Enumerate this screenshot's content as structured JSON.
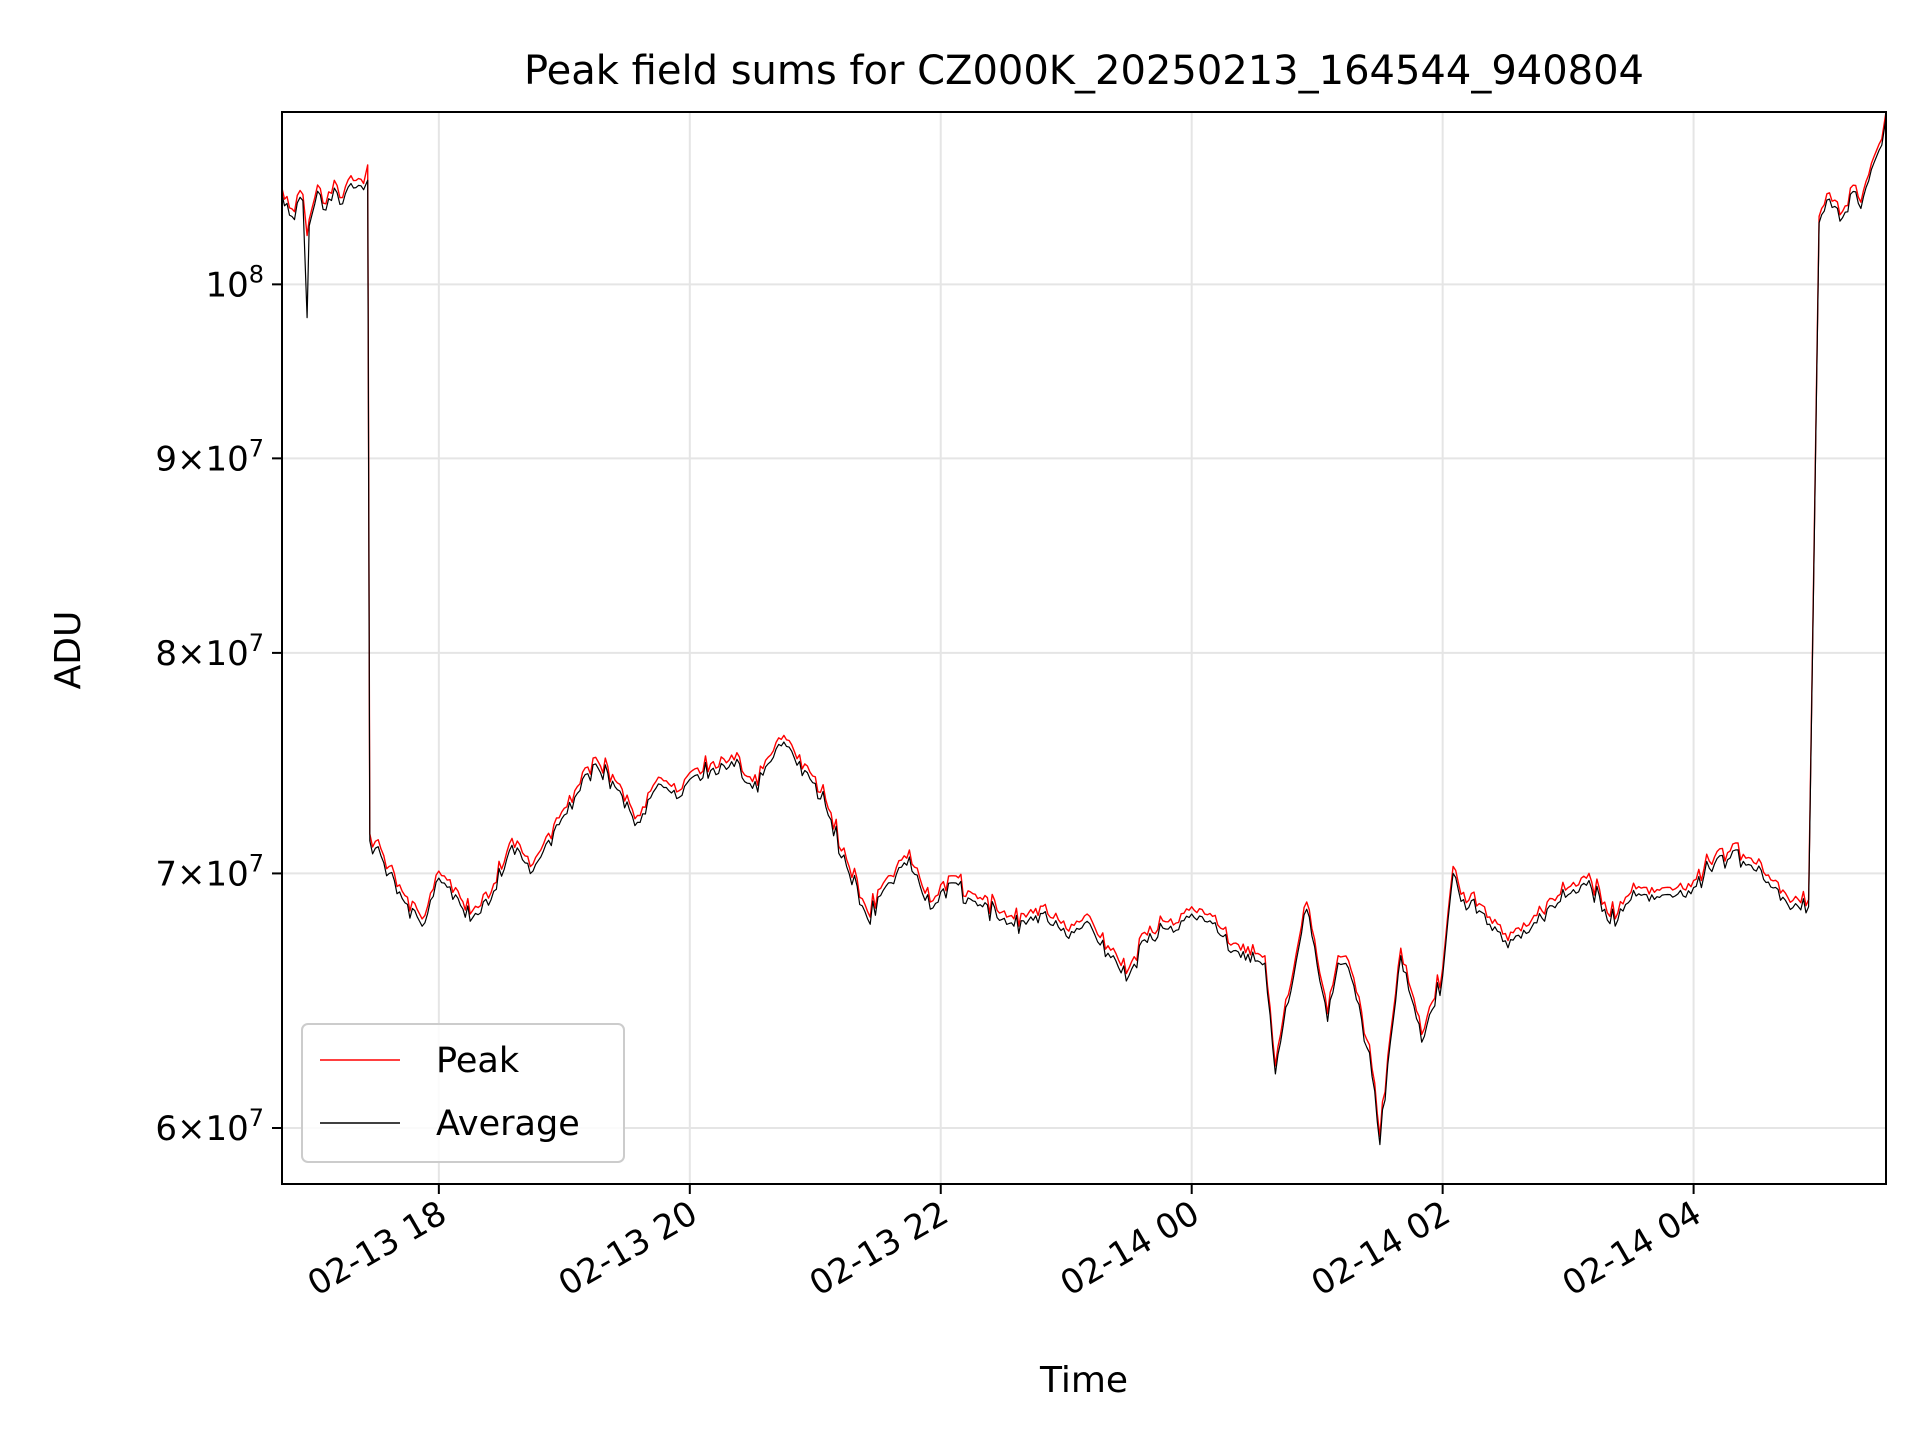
{
  "chart_data": {
    "type": "line",
    "title": "Peak field sums for CZ000K_20250213_164544_940804",
    "xlabel": "Time",
    "ylabel": "ADU",
    "y_scale": "log",
    "grid": true,
    "legend_placement": "lower-left",
    "xlim": [
      "2025-02-13 16:45",
      "2025-02-14 05:32"
    ],
    "ylim": [
      58000000,
      111000000
    ],
    "x_ticks": [
      {
        "value": "2025-02-13 18:00",
        "label": "02-13 18"
      },
      {
        "value": "2025-02-13 20:00",
        "label": "02-13 20"
      },
      {
        "value": "2025-02-13 22:00",
        "label": "02-13 22"
      },
      {
        "value": "2025-02-14 00:00",
        "label": "02-14 00"
      },
      {
        "value": "2025-02-14 02:00",
        "label": "02-14 02"
      },
      {
        "value": "2025-02-14 04:00",
        "label": "02-14 04"
      }
    ],
    "y_ticks": [
      {
        "value": 60000000,
        "mantissa": "6",
        "base": "10",
        "exp": "7"
      },
      {
        "value": 70000000,
        "mantissa": "7",
        "base": "10",
        "exp": "7"
      },
      {
        "value": 80000000,
        "mantissa": "8",
        "base": "10",
        "exp": "7"
      },
      {
        "value": 90000000,
        "mantissa": "9",
        "base": "10",
        "exp": "7"
      },
      {
        "value": 100000000,
        "mantissa": "",
        "base": "10",
        "exp": "8"
      }
    ],
    "series": [
      {
        "name": "Peak",
        "color": "#ff0000",
        "x": [
          "2025-02-13 16:45",
          "2025-02-13 16:51",
          "2025-02-13 16:55",
          "2025-02-13 16:57",
          "2025-02-13 16:58",
          "2025-02-13 17:02",
          "2025-02-13 17:06",
          "2025-02-13 17:10",
          "2025-02-13 17:14",
          "2025-02-13 17:18",
          "2025-02-13 17:24",
          "2025-02-13 17:26",
          "2025-02-13 17:27",
          "2025-02-13 17:35",
          "2025-02-13 17:45",
          "2025-02-13 17:52",
          "2025-02-13 18:00",
          "2025-02-13 18:08",
          "2025-02-13 18:15",
          "2025-02-13 18:25",
          "2025-02-13 18:35",
          "2025-02-13 18:45",
          "2025-02-13 18:55",
          "2025-02-13 19:05",
          "2025-02-13 19:15",
          "2025-02-13 19:30",
          "2025-02-13 19:35",
          "2025-02-13 19:45",
          "2025-02-13 19:55",
          "2025-02-13 20:00",
          "2025-02-13 20:10",
          "2025-02-13 20:20",
          "2025-02-13 20:30",
          "2025-02-13 20:40",
          "2025-02-13 20:45",
          "2025-02-13 20:55",
          "2025-02-13 21:05",
          "2025-02-13 21:15",
          "2025-02-13 21:25",
          "2025-02-13 21:35",
          "2025-02-13 21:45",
          "2025-02-13 21:55",
          "2025-02-13 22:05",
          "2025-02-13 22:20",
          "2025-02-13 22:35",
          "2025-02-13 22:50",
          "2025-02-13 23:00",
          "2025-02-13 23:10",
          "2025-02-13 23:20",
          "2025-02-13 23:30",
          "2025-02-13 23:40",
          "2025-02-13 23:50",
          "2025-02-14 00:00",
          "2025-02-14 00:10",
          "2025-02-14 00:20",
          "2025-02-14 00:35",
          "2025-02-14 00:40",
          "2025-02-14 00:50",
          "2025-02-14 00:55",
          "2025-02-14 01:05",
          "2025-02-14 01:10",
          "2025-02-14 01:15",
          "2025-02-14 01:25",
          "2025-02-14 01:30",
          "2025-02-14 01:35",
          "2025-02-14 01:40",
          "2025-02-14 01:50",
          "2025-02-14 02:00",
          "2025-02-14 02:05",
          "2025-02-14 02:10",
          "2025-02-14 02:20",
          "2025-02-14 02:30",
          "2025-02-14 02:40",
          "2025-02-14 02:50",
          "2025-02-14 03:00",
          "2025-02-14 03:10",
          "2025-02-14 03:20",
          "2025-02-14 03:30",
          "2025-02-14 03:40",
          "2025-02-14 03:50",
          "2025-02-14 04:00",
          "2025-02-14 04:10",
          "2025-02-14 04:20",
          "2025-02-14 04:30",
          "2025-02-14 04:45",
          "2025-02-14 04:55",
          "2025-02-14 05:00",
          "2025-02-14 05:05",
          "2025-02-14 05:10",
          "2025-02-14 05:15",
          "2025-02-14 05:20",
          "2025-02-14 05:25",
          "2025-02-14 05:30",
          "2025-02-14 05:32"
        ],
        "values": [
          106000000,
          104500000,
          105600000,
          103000000,
          104000000,
          106200000,
          105000000,
          106500000,
          105400000,
          106800000,
          106300000,
          107500000,
          71700000,
          70200000,
          69000000,
          68100000,
          70100000,
          69400000,
          68300000,
          69200000,
          71500000,
          70400000,
          72100000,
          73600000,
          75100000,
          73400000,
          72500000,
          74200000,
          73600000,
          74400000,
          74800000,
          75200000,
          74000000,
          75400000,
          76100000,
          74800000,
          73200000,
          70600000,
          68400000,
          69900000,
          71000000,
          68800000,
          69900000,
          68900000,
          68100000,
          68700000,
          67700000,
          68300000,
          67000000,
          66100000,
          67800000,
          68100000,
          68600000,
          68200000,
          67100000,
          66600000,
          62300000,
          66700000,
          68800000,
          64300000,
          66600000,
          66400000,
          63100000,
          59700000,
          63500000,
          66900000,
          63500000,
          66100000,
          70300000,
          69200000,
          68600000,
          67500000,
          67800000,
          68800000,
          69400000,
          70000000,
          68200000,
          69200000,
          69400000,
          69300000,
          69700000,
          70700000,
          71300000,
          70400000,
          69000000,
          68900000,
          104200000,
          105700000,
          104300000,
          106000000,
          105100000,
          107600000,
          109200000,
          111000000
        ]
      },
      {
        "name": "Average",
        "color": "#000000",
        "x": [
          "2025-02-13 16:45",
          "2025-02-13 16:51",
          "2025-02-13 16:55",
          "2025-02-13 16:57",
          "2025-02-13 16:58",
          "2025-02-13 17:02",
          "2025-02-13 17:06",
          "2025-02-13 17:10",
          "2025-02-13 17:14",
          "2025-02-13 17:18",
          "2025-02-13 17:24",
          "2025-02-13 17:26",
          "2025-02-13 17:27",
          "2025-02-13 17:35",
          "2025-02-13 17:45",
          "2025-02-13 17:52",
          "2025-02-13 18:00",
          "2025-02-13 18:08",
          "2025-02-13 18:15",
          "2025-02-13 18:25",
          "2025-02-13 18:35",
          "2025-02-13 18:45",
          "2025-02-13 18:55",
          "2025-02-13 19:05",
          "2025-02-13 19:15",
          "2025-02-13 19:30",
          "2025-02-13 19:35",
          "2025-02-13 19:45",
          "2025-02-13 19:55",
          "2025-02-13 20:00",
          "2025-02-13 20:10",
          "2025-02-13 20:20",
          "2025-02-13 20:30",
          "2025-02-13 20:40",
          "2025-02-13 20:45",
          "2025-02-13 20:55",
          "2025-02-13 21:05",
          "2025-02-13 21:15",
          "2025-02-13 21:25",
          "2025-02-13 21:35",
          "2025-02-13 21:45",
          "2025-02-13 21:55",
          "2025-02-13 22:05",
          "2025-02-13 22:20",
          "2025-02-13 22:35",
          "2025-02-13 22:50",
          "2025-02-13 23:00",
          "2025-02-13 23:10",
          "2025-02-13 23:20",
          "2025-02-13 23:30",
          "2025-02-13 23:40",
          "2025-02-13 23:50",
          "2025-02-14 00:00",
          "2025-02-14 00:10",
          "2025-02-14 00:20",
          "2025-02-14 00:35",
          "2025-02-14 00:40",
          "2025-02-14 00:50",
          "2025-02-14 00:55",
          "2025-02-14 01:05",
          "2025-02-14 01:10",
          "2025-02-14 01:15",
          "2025-02-14 01:25",
          "2025-02-14 01:30",
          "2025-02-14 01:35",
          "2025-02-14 01:40",
          "2025-02-14 01:50",
          "2025-02-14 02:00",
          "2025-02-14 02:05",
          "2025-02-14 02:10",
          "2025-02-14 02:20",
          "2025-02-14 02:30",
          "2025-02-14 02:40",
          "2025-02-14 02:50",
          "2025-02-14 03:00",
          "2025-02-14 03:10",
          "2025-02-14 03:20",
          "2025-02-14 03:30",
          "2025-02-14 03:40",
          "2025-02-14 03:50",
          "2025-02-14 04:00",
          "2025-02-14 04:10",
          "2025-02-14 04:20",
          "2025-02-14 04:30",
          "2025-02-14 04:45",
          "2025-02-14 04:55",
          "2025-02-14 05:00",
          "2025-02-14 05:05",
          "2025-02-14 05:10",
          "2025-02-14 05:15",
          "2025-02-14 05:20",
          "2025-02-14 05:25",
          "2025-02-14 05:30",
          "2025-02-14 05:32"
        ],
        "values": [
          105600000,
          104000000,
          105200000,
          98000000,
          103600000,
          105800000,
          104600000,
          106000000,
          105000000,
          106300000,
          105900000,
          106500000,
          71400000,
          69900000,
          68700000,
          67800000,
          69800000,
          69100000,
          68000000,
          68900000,
          71200000,
          70100000,
          71800000,
          73300000,
          74800000,
          73100000,
          72200000,
          73900000,
          73300000,
          74100000,
          74500000,
          74900000,
          73700000,
          75100000,
          75800000,
          74500000,
          72900000,
          70300000,
          68100000,
          69600000,
          70700000,
          68500000,
          69600000,
          68600000,
          67800000,
          68400000,
          67400000,
          68000000,
          66700000,
          65800000,
          67500000,
          67800000,
          68300000,
          67900000,
          66800000,
          66300000,
          62000000,
          66400000,
          68500000,
          64000000,
          66300000,
          66100000,
          62800000,
          59400000,
          63200000,
          66600000,
          63200000,
          65800000,
          70000000,
          68900000,
          68300000,
          67200000,
          67500000,
          68500000,
          69100000,
          69700000,
          67900000,
          68900000,
          69100000,
          69000000,
          69400000,
          70400000,
          71000000,
          70100000,
          68700000,
          68600000,
          103800000,
          105300000,
          103900000,
          105600000,
          104700000,
          107200000,
          108800000,
          110600000
        ]
      }
    ]
  }
}
